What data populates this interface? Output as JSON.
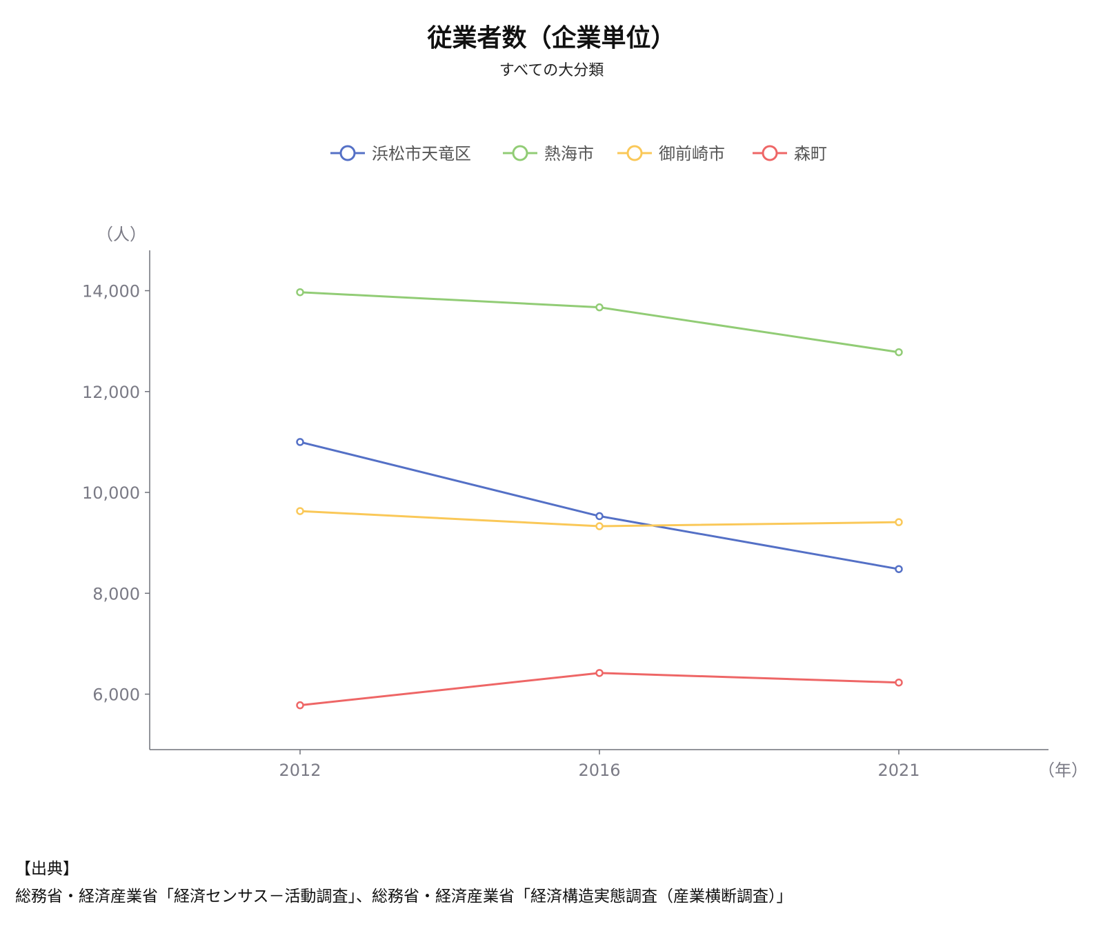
{
  "title": "従業者数（企業単位）",
  "subtitle": "すべての大分類",
  "y_unit": "（人）",
  "x_unit": "（年）",
  "source": {
    "heading": "【出典】",
    "text": "総務省・経済産業省「経済センサス－活動調査」、総務省・経済産業省「経済構造実態調査（産業横断調査）」"
  },
  "chart_data": {
    "type": "line",
    "title": "従業者数（企業単位）",
    "subtitle": "すべての大分類",
    "x": [
      "2012",
      "2016",
      "2021"
    ],
    "xlabel": "（年）",
    "ylabel": "（人）",
    "ylim": [
      4900,
      14800
    ],
    "yticks": [
      6000,
      8000,
      10000,
      12000,
      14000
    ],
    "ytick_labels": [
      "6,000",
      "8,000",
      "10,000",
      "12,000",
      "14,000"
    ],
    "grid": false,
    "legend_position": "top-center",
    "series": [
      {
        "name": "浜松市天竜区",
        "color": "#5470c6",
        "values": [
          11000,
          9530,
          8480
        ]
      },
      {
        "name": "熱海市",
        "color": "#91cc75",
        "values": [
          13970,
          13670,
          12780
        ]
      },
      {
        "name": "御前崎市",
        "color": "#fac858",
        "values": [
          9630,
          9330,
          9410
        ]
      },
      {
        "name": "森町",
        "color": "#ee6666",
        "values": [
          5780,
          6420,
          6230
        ]
      }
    ]
  }
}
